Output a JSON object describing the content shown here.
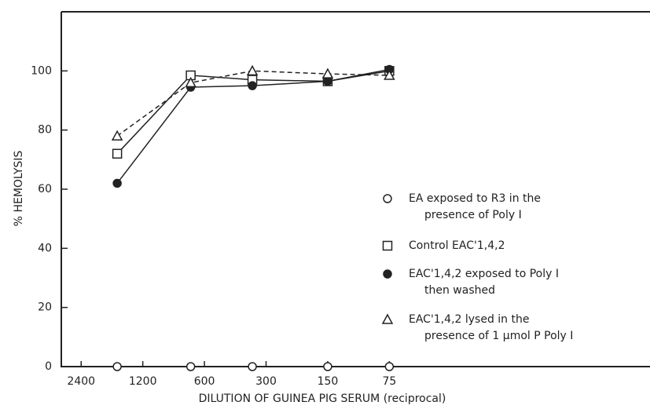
{
  "chart_data": {
    "type": "line",
    "y_label": "% HEMOLYSIS",
    "x_label": "DILUTION OF GUINEA PIG SERUM (reciprocal)",
    "x": [
      1600,
      700,
      350,
      150,
      75
    ],
    "xlim": [
      3000,
      4
    ],
    "xscale": "log",
    "xticks": [
      2400,
      1200,
      600,
      300,
      150,
      75
    ],
    "ylim": [
      0,
      120
    ],
    "yticks": [
      0,
      20,
      40,
      60,
      80,
      100
    ],
    "legend": "right",
    "series": [
      {
        "name": "EA exposed to R3 in the presence of Poly I",
        "color": "#222",
        "marker": "circle-open",
        "line": "none",
        "values": [
          0,
          0,
          0,
          0,
          0
        ]
      },
      {
        "name": "Control EAC'1,4,2",
        "color": "#222",
        "marker": "square-open",
        "line": "solid",
        "values": [
          72,
          98.5,
          97,
          96.5,
          100
        ]
      },
      {
        "name": "EAC'1,4,2 exposed to Poly I then washed",
        "color": "#222",
        "marker": "circle-filled",
        "line": "solid",
        "values": [
          62,
          94.5,
          95,
          96.5,
          100.5
        ]
      },
      {
        "name": "EAC'1,4,2 lysed in the presence of 1 µmol P Poly I",
        "color": "#222",
        "marker": "triangle-open",
        "line": "dash",
        "values": [
          78,
          96,
          100,
          99,
          98.5
        ]
      }
    ]
  }
}
